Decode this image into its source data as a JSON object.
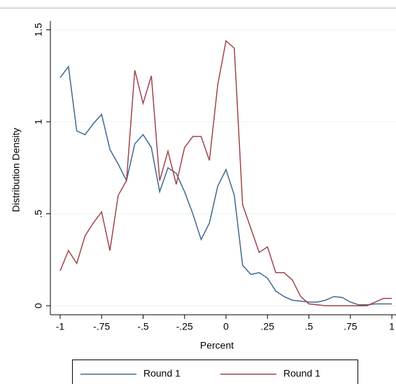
{
  "chart_data": {
    "type": "line",
    "x_label": "Percent",
    "y_label": "Distribution Density",
    "x": [
      -1,
      -0.95,
      -0.9,
      -0.85,
      -0.8,
      -0.75,
      -0.7,
      -0.65,
      -0.6,
      -0.55,
      -0.5,
      -0.45,
      -0.4,
      -0.35,
      -0.3,
      -0.25,
      -0.2,
      -0.15,
      -0.1,
      -0.05,
      0,
      0.05,
      0.1,
      0.15,
      0.2,
      0.25,
      0.3,
      0.35,
      0.4,
      0.45,
      0.5,
      0.55,
      0.6,
      0.65,
      0.7,
      0.75,
      0.8,
      0.85,
      0.9,
      0.95,
      1
    ],
    "series": [
      {
        "name": "Round 1",
        "color": "#3e6a8e",
        "values": [
          1.24,
          1.3,
          0.95,
          0.93,
          0.99,
          1.04,
          0.85,
          0.77,
          0.68,
          0.88,
          0.93,
          0.86,
          0.62,
          0.75,
          0.72,
          0.62,
          0.5,
          0.36,
          0.45,
          0.65,
          0.74,
          0.6,
          0.22,
          0.17,
          0.18,
          0.15,
          0.08,
          0.05,
          0.03,
          0.025,
          0.02,
          0.02,
          0.03,
          0.05,
          0.045,
          0.02,
          0.005,
          0.005,
          0.01,
          0.01,
          0.01
        ]
      },
      {
        "name": "Round 1",
        "color": "#a0434b",
        "values": [
          0.19,
          0.3,
          0.23,
          0.38,
          0.45,
          0.51,
          0.3,
          0.6,
          0.68,
          1.28,
          1.1,
          1.25,
          0.68,
          0.84,
          0.66,
          0.86,
          0.92,
          0.92,
          0.79,
          1.2,
          1.44,
          1.4,
          0.55,
          0.42,
          0.29,
          0.32,
          0.18,
          0.18,
          0.14,
          0.05,
          0.01,
          0.005,
          0,
          0,
          0,
          0,
          0,
          0,
          0.02,
          0.04,
          0.04
        ]
      }
    ],
    "xlim": [
      -1.059,
      1.025
    ],
    "xticks": [
      -1,
      {
        "value": -0.75,
        "label": "-.75"
      },
      {
        "value": -0.5,
        "label": "-.5"
      },
      {
        "value": -0.25,
        "label": "-.25"
      },
      0,
      {
        "value": 0.25,
        "label": ".25"
      },
      {
        "value": 0.5,
        "label": ".5"
      },
      {
        "value": 0.75,
        "label": ".75"
      },
      1
    ],
    "ylim": [
      -0.049,
      1.548
    ],
    "yticks": [
      0,
      {
        "value": 0.5,
        "label": ".5"
      },
      1,
      1.5
    ],
    "grid": true,
    "legend": "bottom"
  }
}
